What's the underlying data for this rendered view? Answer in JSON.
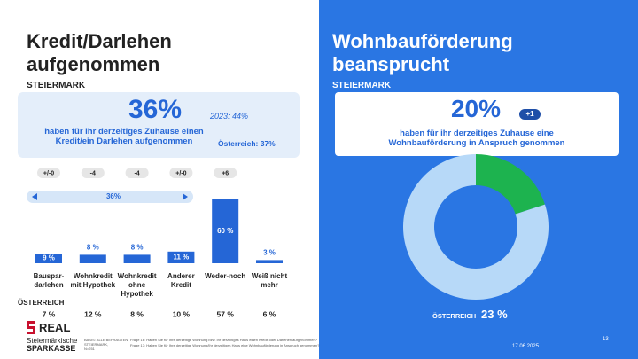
{
  "left": {
    "title": "Kredit/Darlehen\naufgenommen",
    "region": "STEIERMARK",
    "headline": "36%",
    "previous": "2023: 44%",
    "description": "haben für ihr derzeitiges Zuhause einen\nKredit/ein Darlehen aufgenommen",
    "austria": "Österreich: 37%"
  },
  "right": {
    "title": "Wohnbauförderung\nbeansprucht",
    "region": "STEIERMARK",
    "headline": "20%",
    "change": "+1",
    "description": "haben für ihr derzeitiges Zuhause eine\nWohnbauförderung in Anspruch genommen",
    "austria_label": "ÖSTERREICH",
    "austria_value": "23 %"
  },
  "chart_data": [
    {
      "type": "bar",
      "categories": [
        "Bauspar-\ndarlehen",
        "Wohnkredit\nmit Hypothek",
        "Wohnkredit\nohne\nHypothek",
        "Anderer\nKredit",
        "Weder-noch",
        "Weiß nicht\nmehr"
      ],
      "values": [
        9,
        8,
        8,
        11,
        60,
        3
      ],
      "value_labels": [
        "9 %",
        "8 %",
        "8 %",
        "11 %",
        "60 %",
        "3 %"
      ],
      "color": "#2566d6",
      "changes": [
        "+/-0",
        "-4",
        "-4",
        "+/-0",
        "+6",
        null
      ],
      "bracket_label": "36%",
      "austria_label": "ÖSTERREICH",
      "austria_values": [
        "7 %",
        "12 %",
        "8 %",
        "10 %",
        "57 %",
        "6 %"
      ]
    },
    {
      "type": "pie",
      "values": [
        20,
        80
      ],
      "colors": [
        "#1db34f",
        "#b7d9f8"
      ]
    }
  ],
  "footer": {
    "logo_mark": "REAL",
    "logo_line1": "Steiermärkische",
    "logo_line2": "SPARKASSE",
    "basis": "BASIS: ALLE BEFRAGTEN\nSTEIERMARK,\nN=251",
    "questions": [
      "Frage 16: Haben Sie für Ihre derzeitige Wohnung bzw. Ihr derzeitiges Haus einen Kredit oder Darlehen aufgenommen?",
      "Frage 17: Haben Sie für Ihre derzeitige Wohnung/Ihr derzeitiges Haus eine Wohnbauförderung in Anspruch genommen?"
    ],
    "date": "17.06.2025",
    "page": "13"
  }
}
